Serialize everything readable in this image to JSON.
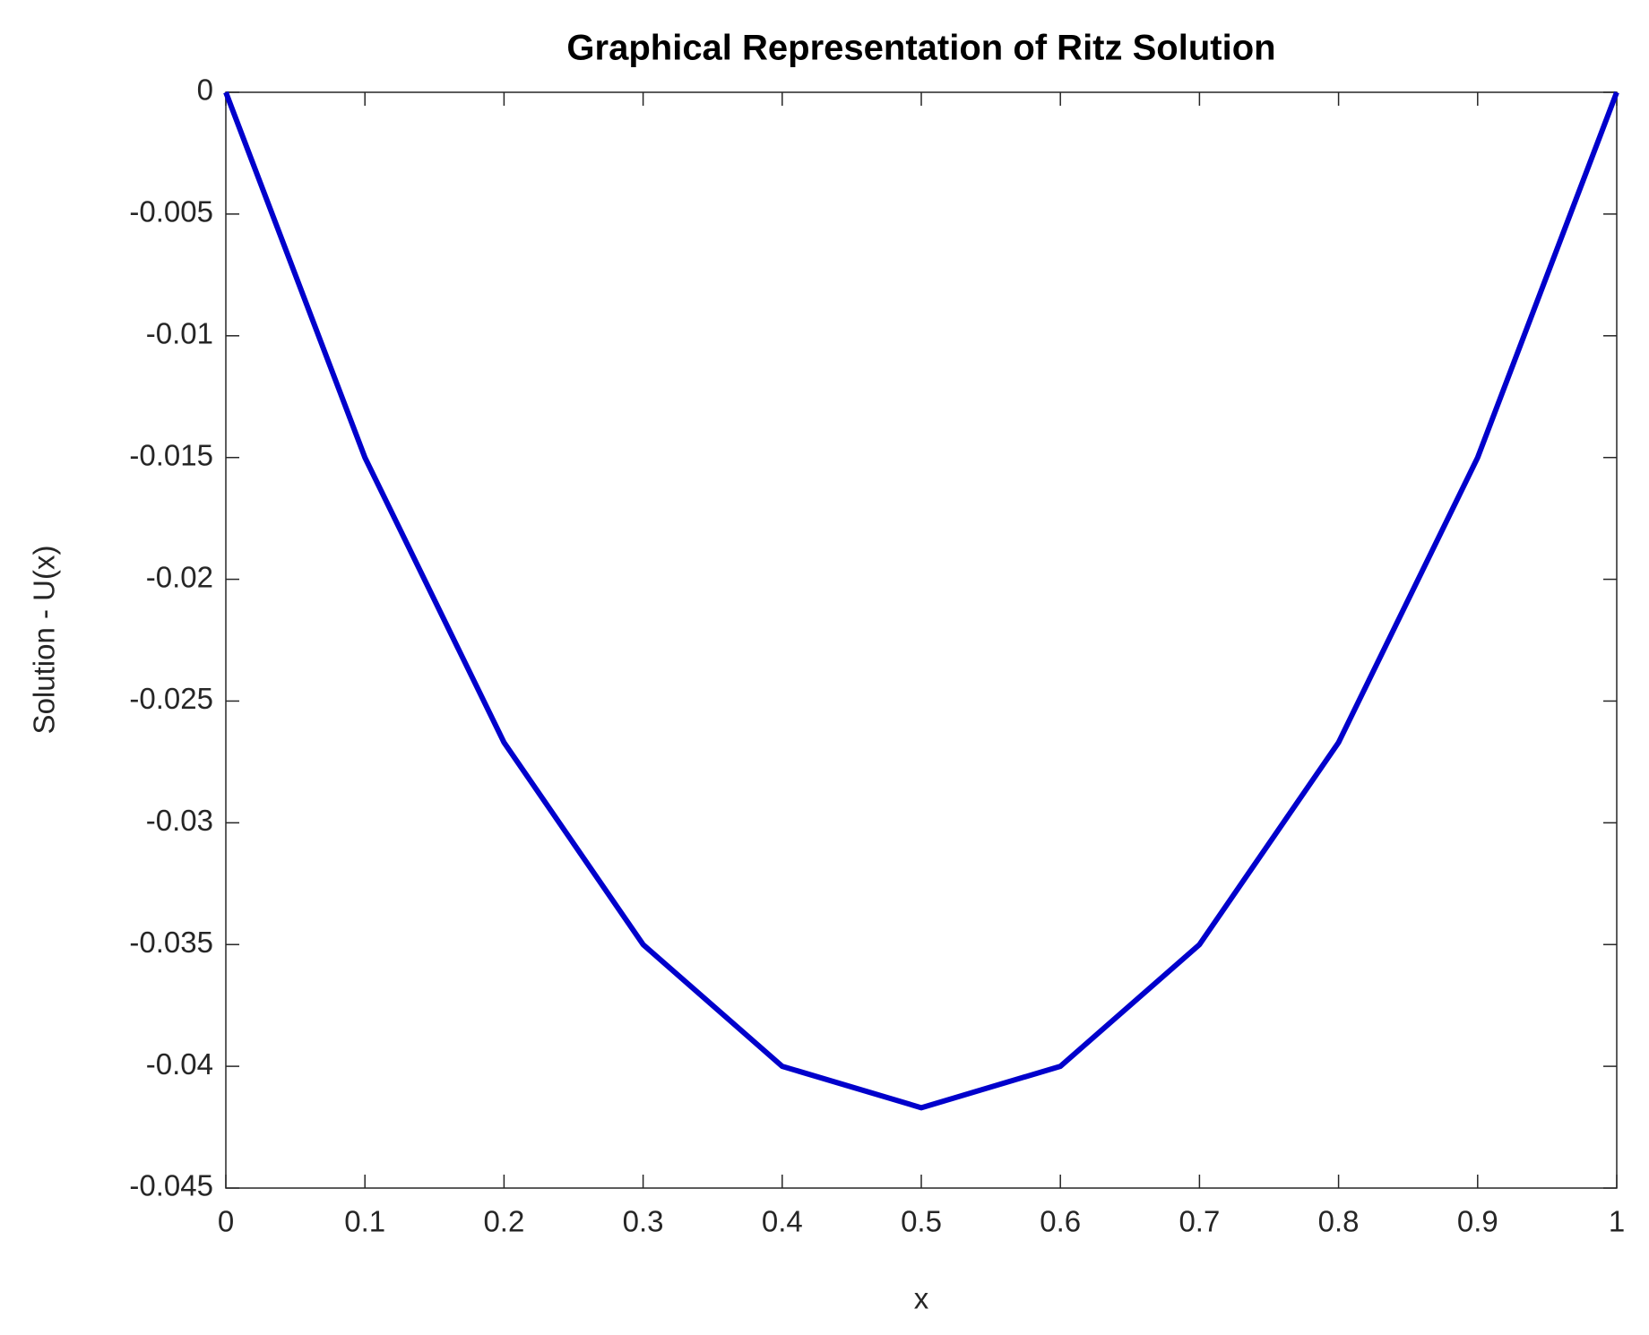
{
  "chart_data": {
    "type": "line",
    "title": "Graphical Representation of Ritz Solution",
    "x_label": "x",
    "y_label": "Solution - U(x)",
    "x": [
      0,
      0.1,
      0.2,
      0.3,
      0.4,
      0.5,
      0.6,
      0.7,
      0.8,
      0.9,
      1
    ],
    "series": [
      {
        "color": "#0000cc",
        "values": [
          0,
          -0.015,
          -0.0267,
          -0.035,
          -0.04,
          -0.0417,
          -0.04,
          -0.035,
          -0.0267,
          -0.015,
          0
        ]
      }
    ],
    "xlim": [
      0,
      1
    ],
    "ylim": [
      -0.045,
      0
    ],
    "xticks": [
      0,
      0.1,
      0.2,
      0.3,
      0.4,
      0.5,
      0.6,
      0.7,
      0.8,
      0.9,
      1
    ],
    "yticks": [
      0,
      -0.005,
      -0.01,
      -0.015,
      -0.02,
      -0.025,
      -0.03,
      -0.035,
      -0.04,
      -0.045
    ],
    "grid": false
  }
}
